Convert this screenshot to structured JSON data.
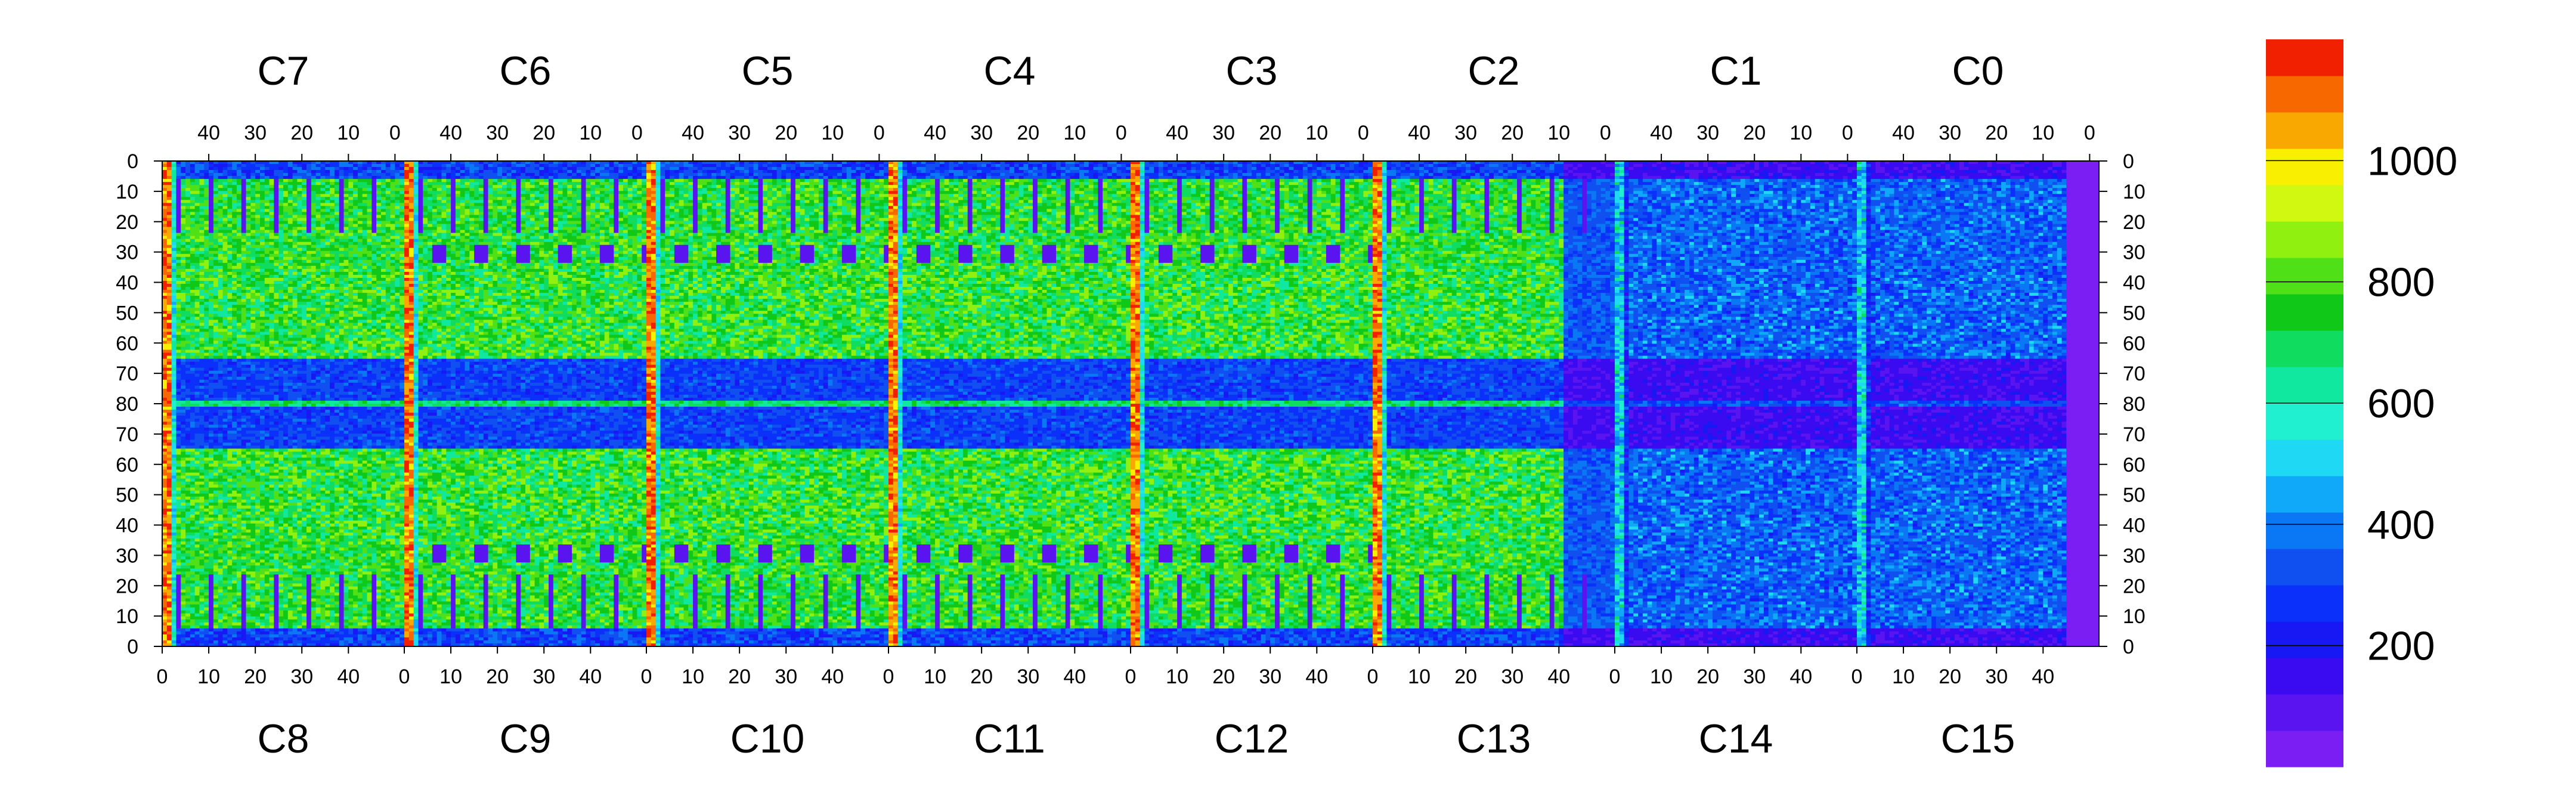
{
  "chart_data": {
    "type": "heatmap",
    "title": "",
    "xlabel": "",
    "ylabel": "",
    "top_chip_labels": [
      "C7",
      "C6",
      "C5",
      "C4",
      "C3",
      "C2",
      "C1",
      "C0"
    ],
    "bottom_chip_labels": [
      "C8",
      "C9",
      "C10",
      "C11",
      "C12",
      "C13",
      "C14",
      "C15"
    ],
    "top_x_ticks": [
      "40",
      "30",
      "20",
      "10",
      "0"
    ],
    "bottom_x_ticks": [
      "0",
      "10",
      "20",
      "30",
      "40"
    ],
    "y_ticks": [
      "0",
      "10",
      "20",
      "30",
      "40",
      "50",
      "60",
      "70",
      "80",
      "70",
      "60",
      "50",
      "40",
      "30",
      "20",
      "10",
      "0"
    ],
    "grid": false,
    "columns_per_chip": 52,
    "rows": 162,
    "z_range": [
      0,
      1200
    ],
    "colorbar": {
      "position": "right",
      "levels": 20,
      "tick_labels": [
        "200",
        "400",
        "600",
        "800",
        "1000"
      ],
      "tick_values": [
        200,
        400,
        600,
        800,
        1000
      ],
      "colors": [
        "#7a1ef4",
        "#5a14f0",
        "#3a0af0",
        "#1818f4",
        "#0a30fa",
        "#1050f0",
        "#0a78f4",
        "#10a8f8",
        "#1ed8f4",
        "#20f0d0",
        "#10e8a0",
        "#10dc60",
        "#10c818",
        "#50e018",
        "#90f010",
        "#d0f810",
        "#f8f000",
        "#f8a800",
        "#f86800",
        "#f02000"
      ]
    },
    "description_levels": {
      "background_top_half": 750,
      "background_middle_band": 300,
      "chip_edge_columns": 1050,
      "masked_regions": 0
    }
  }
}
